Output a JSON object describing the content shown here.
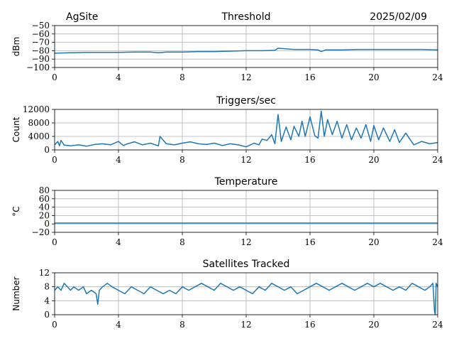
{
  "header": {
    "site": "AgSite",
    "date": "2025/02/09"
  },
  "chart_data": [
    {
      "type": "line",
      "title": "Threshold",
      "ylabel": "dBm",
      "xlim": [
        0,
        24
      ],
      "xticks": [
        0,
        4,
        8,
        12,
        16,
        20,
        24
      ],
      "ylim": [
        -100,
        -50
      ],
      "yticks": [
        -100,
        -90,
        -80,
        -70,
        -60,
        -50
      ],
      "ytick_labels": [
        "−100",
        "−90",
        "−80",
        "−70",
        "−60",
        "−50"
      ],
      "grid": true,
      "color": "#1f77b4",
      "series": [
        {
          "x": [
            0,
            1,
            2,
            3,
            4,
            5,
            6,
            6.5,
            7,
            8,
            9,
            10,
            11,
            12,
            13,
            13.8,
            14,
            15,
            16,
            16.5,
            16.7,
            17,
            18,
            19,
            20,
            21,
            22,
            23,
            24
          ],
          "y": [
            -83,
            -82.5,
            -82,
            -82,
            -82,
            -81.5,
            -81.5,
            -82.5,
            -81.5,
            -81.5,
            -81,
            -81,
            -80.5,
            -80,
            -80,
            -79.5,
            -77,
            -78.5,
            -78.5,
            -79,
            -81,
            -79,
            -79,
            -78.5,
            -78.5,
            -78.5,
            -78.5,
            -78.5,
            -79
          ]
        }
      ]
    },
    {
      "type": "line",
      "title": "Triggers/sec",
      "ylabel": "Count",
      "xlim": [
        0,
        24
      ],
      "xticks": [
        0,
        4,
        8,
        12,
        16,
        20,
        24
      ],
      "ylim": [
        0,
        12000
      ],
      "yticks": [
        0,
        4000,
        8000,
        12000
      ],
      "ytick_labels": [
        "0",
        "4000",
        "8000",
        "12000"
      ],
      "grid": true,
      "color": "#1f77b4",
      "series": [
        {
          "x": [
            0,
            0.2,
            0.3,
            0.4,
            0.6,
            1,
            1.5,
            2,
            2.5,
            3,
            3.5,
            4,
            4.3,
            4.5,
            5,
            5.5,
            6,
            6.5,
            6.6,
            7,
            7.5,
            8,
            8.5,
            9,
            9.5,
            10,
            10.5,
            11,
            11.5,
            12,
            12.5,
            12.8,
            13,
            13.3,
            13.6,
            13.8,
            14,
            14.2,
            14.5,
            14.8,
            15,
            15.3,
            15.5,
            15.7,
            16,
            16.3,
            16.5,
            16.7,
            16.9,
            17.1,
            17.4,
            17.7,
            18,
            18.3,
            18.6,
            18.9,
            19.2,
            19.5,
            19.8,
            20,
            20.3,
            20.6,
            21,
            21.3,
            21.6,
            22,
            22.5,
            23,
            23.5,
            24
          ],
          "y": [
            1500,
            2500,
            1200,
            2800,
            1400,
            1200,
            1500,
            1100,
            1600,
            1800,
            1500,
            2500,
            1300,
            1700,
            2400,
            1500,
            2000,
            1200,
            4000,
            1800,
            1500,
            2000,
            2400,
            1800,
            1600,
            2000,
            1300,
            1800,
            1500,
            900,
            2000,
            1500,
            3200,
            2800,
            4500,
            1800,
            10500,
            2500,
            6800,
            3000,
            7000,
            4000,
            8500,
            4000,
            9800,
            4200,
            3500,
            11500,
            4000,
            9000,
            4500,
            8500,
            3500,
            7500,
            3000,
            6500,
            3500,
            7500,
            2500,
            7200,
            3000,
            6500,
            2500,
            6000,
            2200,
            5000,
            1500,
            2500,
            1800,
            2200
          ]
        }
      ]
    },
    {
      "type": "line",
      "title": "Temperature",
      "ylabel": "°C",
      "xlim": [
        0,
        24
      ],
      "xticks": [
        0,
        4,
        8,
        12,
        16,
        20,
        24
      ],
      "ylim": [
        -20,
        80
      ],
      "yticks": [
        -20,
        0,
        20,
        40,
        60,
        80
      ],
      "ytick_labels": [
        "−20",
        "0",
        "20",
        "40",
        "60",
        "80"
      ],
      "grid": true,
      "color": "#1f77b4",
      "series": [
        {
          "x": [
            0,
            24
          ],
          "y": [
            2,
            2
          ]
        }
      ]
    },
    {
      "type": "line",
      "title": "Satellites Tracked",
      "ylabel": "Number",
      "xlim": [
        0,
        24
      ],
      "xticks": [
        0,
        4,
        8,
        12,
        16,
        20,
        24
      ],
      "ylim": [
        0,
        12
      ],
      "yticks": [
        0,
        4,
        8,
        12
      ],
      "ytick_labels": [
        "0",
        "4",
        "8",
        "12"
      ],
      "grid": true,
      "color": "#1f77b4",
      "series": [
        {
          "x": [
            0,
            0.2,
            0.4,
            0.6,
            0.8,
            1,
            1.2,
            1.5,
            1.8,
            2,
            2.3,
            2.6,
            2.7,
            2.8,
            3,
            3.3,
            3.6,
            4,
            4.4,
            4.8,
            5.2,
            5.6,
            6,
            6.4,
            6.8,
            7.2,
            7.6,
            8,
            8.4,
            8.8,
            9.2,
            9.6,
            10,
            10.4,
            10.8,
            11.2,
            11.6,
            12,
            12.4,
            12.8,
            13.2,
            13.6,
            14,
            14.4,
            14.8,
            15.2,
            15.6,
            16,
            16.4,
            16.8,
            17.2,
            17.6,
            18,
            18.4,
            18.8,
            19.2,
            19.6,
            20,
            20.4,
            20.8,
            21.2,
            21.6,
            22,
            22.4,
            22.8,
            23.2,
            23.5,
            23.7,
            23.8,
            23.85,
            23.9,
            24
          ],
          "y": [
            7,
            8,
            7,
            9,
            8,
            7,
            8,
            7,
            8,
            6,
            7,
            6,
            3,
            7,
            8,
            9,
            8,
            7,
            6,
            8,
            7,
            6,
            8,
            7,
            6,
            7,
            6,
            8,
            7,
            8,
            9,
            8,
            7,
            9,
            8,
            7,
            8,
            7,
            6,
            8,
            7,
            9,
            8,
            7,
            8,
            6,
            7,
            8,
            9,
            8,
            7,
            8,
            9,
            8,
            7,
            8,
            9,
            8,
            9,
            8,
            7,
            8,
            7,
            9,
            8,
            7,
            8,
            9,
            1,
            0,
            9,
            8
          ]
        }
      ]
    }
  ]
}
